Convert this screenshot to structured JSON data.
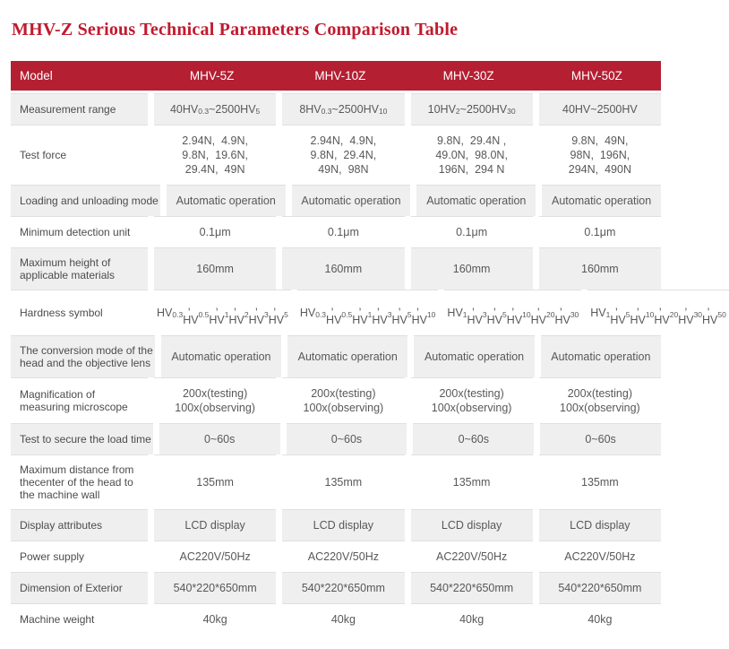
{
  "page_title": "MHV-Z Serious Technical Parameters Comparison Table",
  "colors": {
    "title_red": "#c11a2e",
    "header_bg": "#b41f32",
    "header_text": "#ffffff",
    "row_alt_bg": "#efefef",
    "row_bg": "#ffffff",
    "label_text": "#4c4c4e",
    "value_text": "#58585a",
    "divider": "#e0e0e0"
  },
  "table": {
    "columns": [
      "Model",
      "MHV-5Z",
      "MHV-10Z",
      "MHV-30Z",
      "MHV-50Z"
    ],
    "rows": [
      {
        "label": "Measurement range",
        "values": [
          "40HV_{0.3}~2500HV_{5}",
          "8HV_{0.3}~2500HV_{10}",
          "10HV_{2}~2500HV_{30}",
          "40HV~2500HV"
        ]
      },
      {
        "label": "Test force",
        "values": [
          "2.94N,  4.9N,\n9.8N,  19.6N,\n29.4N,  49N",
          "2.94N,  4.9N,\n9.8N,  29.4N,\n49N,  98N",
          "9.8N,  29.4N ,\n49.0N,  98.0N,\n196N,  294 N",
          "9.8N,  49N,\n98N,  196N,\n294N,  490N"
        ]
      },
      {
        "label": "Loading and unloading mode",
        "values": [
          "Automatic operation",
          "Automatic operation",
          "Automatic operation",
          "Automatic operation"
        ]
      },
      {
        "label": "Minimum detection unit",
        "values": [
          "0.1μm",
          "0.1μm",
          "0.1μm",
          "0.1μm"
        ]
      },
      {
        "label": "Maximum height of\napplicable materials",
        "values": [
          "160mm",
          "160mm",
          "160mm",
          "160mm"
        ]
      },
      {
        "label": "Hardness symbol",
        "values": [
          "HV_{0.3},  HV_{0.5},\nHV_{1},  HV_{2},\nHV_{3},  HV_{5}",
          "HV_{0.3},  HV_{0.5},\nHV_{1},  HV_{3},\nHV_{5},  HV_{10}",
          "HV_{1},  HV_{3},\nHV_{5},  HV_{10},\nHV_{20},  HV_{30}",
          "HV_{1},  HV_{5},\nHV_{10},  HV_{20},\nHV_{30},  HV_{50}"
        ]
      },
      {
        "label": "The conversion mode of the\nhead and the objective lens",
        "values": [
          "Automatic operation",
          "Automatic operation",
          "Automatic operation",
          "Automatic operation"
        ]
      },
      {
        "label": "Magnification of\nmeasuring microscope",
        "values": [
          "200x(testing)\n100x(observing)",
          "200x(testing)\n100x(observing)",
          "200x(testing)\n100x(observing)",
          "200x(testing)\n100x(observing)"
        ]
      },
      {
        "label": "Test to secure the load time",
        "values": [
          "0~60s",
          "0~60s",
          "0~60s",
          "0~60s"
        ]
      },
      {
        "label": "Maximum distance from\nthecenter of the head to\nthe machine wall",
        "values": [
          "135mm",
          "135mm",
          "135mm",
          "135mm"
        ]
      },
      {
        "label": "Display attributes",
        "values": [
          "LCD display",
          "LCD display",
          "LCD display",
          "LCD display"
        ]
      },
      {
        "label": "Power supply",
        "values": [
          "AC220V/50Hz",
          "AC220V/50Hz",
          "AC220V/50Hz",
          "AC220V/50Hz"
        ]
      },
      {
        "label": "Dimension of Exterior",
        "values": [
          "540*220*650mm",
          "540*220*650mm",
          "540*220*650mm",
          "540*220*650mm"
        ]
      },
      {
        "label": "Machine weight",
        "values": [
          "40kg",
          "40kg",
          "40kg",
          "40kg"
        ]
      }
    ]
  }
}
